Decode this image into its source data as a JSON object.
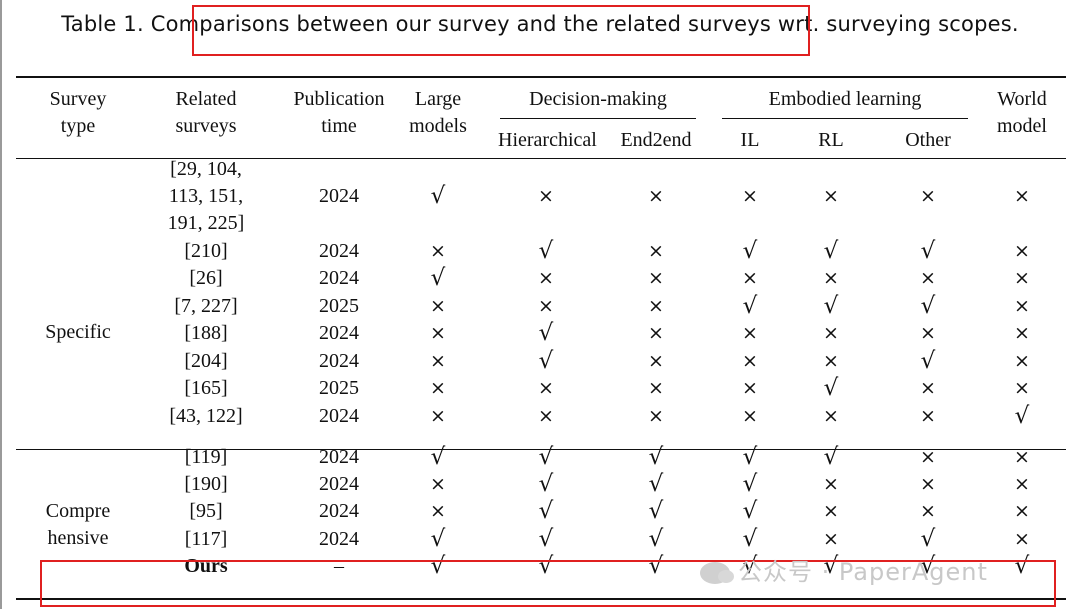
{
  "caption": "Table 1.  Comparisons between our survey and the related surveys wrt. surveying scopes.",
  "headers": {
    "survey_type": [
      "Survey",
      "type"
    ],
    "related_surveys": [
      "Related",
      "surveys"
    ],
    "publication_time": [
      "Publication",
      "time"
    ],
    "large_models": [
      "Large",
      "models"
    ],
    "decision_making": "Decision-making",
    "hierarchical": "Hierarchical",
    "end2end": "End2end",
    "embodied_learning": "Embodied learning",
    "il": "IL",
    "rl": "RL",
    "other": "Other",
    "world_model": [
      "World",
      "model"
    ]
  },
  "groups": {
    "specific": "Specific",
    "comprehensive": [
      "Compre",
      "hensive"
    ]
  },
  "symbols": {
    "yes": "√",
    "no": "×",
    "dash": "–"
  },
  "rows": [
    {
      "ref": [
        "[29, 104,",
        "113, 151,",
        "191, 225]"
      ],
      "time": "2024",
      "marks": [
        "√",
        "×",
        "×",
        "×",
        "×",
        "×",
        "×"
      ]
    },
    {
      "ref": [
        "[210]"
      ],
      "time": "2024",
      "marks": [
        "×",
        "√",
        "×",
        "√",
        "√",
        "√",
        "×"
      ]
    },
    {
      "ref": [
        "[26]"
      ],
      "time": "2024",
      "marks": [
        "√",
        "×",
        "×",
        "×",
        "×",
        "×",
        "×"
      ]
    },
    {
      "ref": [
        "[7, 227]"
      ],
      "time": "2025",
      "marks": [
        "×",
        "×",
        "×",
        "√",
        "√",
        "√",
        "×"
      ]
    },
    {
      "ref": [
        "[188]"
      ],
      "time": "2024",
      "marks": [
        "×",
        "√",
        "×",
        "×",
        "×",
        "×",
        "×"
      ]
    },
    {
      "ref": [
        "[204]"
      ],
      "time": "2024",
      "marks": [
        "×",
        "√",
        "×",
        "×",
        "×",
        "√",
        "×"
      ]
    },
    {
      "ref": [
        "[165]"
      ],
      "time": "2025",
      "marks": [
        "×",
        "×",
        "×",
        "×",
        "√",
        "×",
        "×"
      ]
    },
    {
      "ref": [
        "[43, 122]"
      ],
      "time": "2024",
      "marks": [
        "×",
        "×",
        "×",
        "×",
        "×",
        "×",
        "√"
      ]
    },
    {
      "ref": [
        "[119]"
      ],
      "time": "2024",
      "marks": [
        "√",
        "√",
        "√",
        "√",
        "√",
        "×",
        "×"
      ]
    },
    {
      "ref": [
        "[190]"
      ],
      "time": "2024",
      "marks": [
        "×",
        "√",
        "√",
        "√",
        "×",
        "×",
        "×"
      ]
    },
    {
      "ref": [
        "[95]"
      ],
      "time": "2024",
      "marks": [
        "×",
        "√",
        "√",
        "√",
        "×",
        "×",
        "×"
      ]
    },
    {
      "ref": [
        "[117]"
      ],
      "time": "2024",
      "marks": [
        "√",
        "√",
        "√",
        "√",
        "×",
        "√",
        "×"
      ]
    },
    {
      "ref": [
        "Ours"
      ],
      "time": "–",
      "marks": [
        "√",
        "√",
        "√",
        "√",
        "√",
        "√",
        "√"
      ],
      "bold": true
    }
  ],
  "watermark": "公众号 · PaperAgent",
  "highlight_color": "#e02020"
}
